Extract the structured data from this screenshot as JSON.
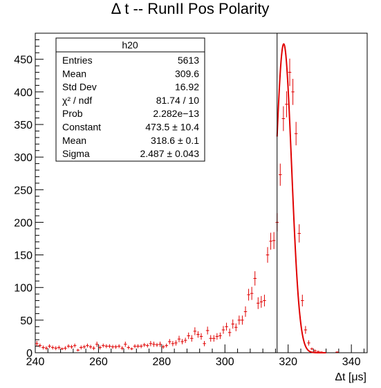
{
  "chart_data": {
    "type": "scatter",
    "title": "Δ t -- RunII Pos Polarity",
    "xlabel": "Δt [μs]",
    "ylabel": "",
    "xlim": [
      240,
      345
    ],
    "ylim": [
      0,
      490
    ],
    "x_ticks": [
      240,
      260,
      280,
      300,
      320,
      340
    ],
    "y_ticks": [
      0,
      50,
      100,
      150,
      200,
      250,
      300,
      350,
      400,
      450
    ],
    "grid": false,
    "histogram": {
      "name": "h20",
      "color": "#e00000",
      "x": [
        240.5,
        241.5,
        242.5,
        243.5,
        244.5,
        245.5,
        246.5,
        247.5,
        248.5,
        249.5,
        250.5,
        251.5,
        252.5,
        253.5,
        254.5,
        255.5,
        256.5,
        257.5,
        258.5,
        259.5,
        260.5,
        261.5,
        262.5,
        263.5,
        264.5,
        265.5,
        266.5,
        267.5,
        268.5,
        269.5,
        270.5,
        271.5,
        272.5,
        273.5,
        274.5,
        275.5,
        276.5,
        277.5,
        278.5,
        279.5,
        280.5,
        281.5,
        282.5,
        283.5,
        284.5,
        285.5,
        286.5,
        287.5,
        288.5,
        289.5,
        290.5,
        291.5,
        292.5,
        293.5,
        294.5,
        295.5,
        296.5,
        297.5,
        298.5,
        299.5,
        300.5,
        301.5,
        302.5,
        303.5,
        304.5,
        305.5,
        306.5,
        307.5,
        308.5,
        309.5,
        310.5,
        311.5,
        312.5,
        313.5,
        314.5,
        315.5,
        316.5,
        317.5,
        318.5,
        319.5,
        320.5,
        321.5,
        322.5,
        323.5,
        324.5,
        325.5,
        326.5,
        327.5,
        328.5,
        329.5,
        330.5,
        335.5
      ],
      "y": [
        14,
        11,
        8,
        7,
        10,
        8,
        7,
        8,
        6,
        7,
        10,
        9,
        11,
        4,
        8,
        9,
        11,
        9,
        7,
        13,
        8,
        11,
        10,
        10,
        9,
        9,
        10,
        7,
        13,
        8,
        6,
        10,
        10,
        10,
        12,
        11,
        14,
        13,
        12,
        13,
        9,
        11,
        17,
        14,
        15,
        21,
        17,
        19,
        26,
        22,
        33,
        28,
        25,
        14,
        34,
        22,
        22,
        25,
        26,
        35,
        40,
        31,
        44,
        39,
        50,
        50,
        63,
        89,
        91,
        114,
        76,
        78,
        80,
        150,
        171,
        172,
        200,
        273,
        359,
        381,
        430,
        400,
        336,
        183,
        80,
        35,
        15,
        6,
        3,
        2,
        1,
        1
      ],
      "err": [
        4,
        3,
        3,
        3,
        3,
        3,
        3,
        3,
        2,
        3,
        3,
        3,
        3,
        2,
        3,
        3,
        3,
        3,
        3,
        4,
        3,
        3,
        3,
        3,
        3,
        3,
        3,
        3,
        4,
        3,
        2,
        3,
        3,
        3,
        3,
        3,
        4,
        4,
        3,
        4,
        3,
        3,
        4,
        4,
        4,
        5,
        4,
        4,
        5,
        5,
        6,
        5,
        5,
        4,
        6,
        5,
        5,
        5,
        5,
        6,
        6,
        6,
        7,
        6,
        7,
        7,
        8,
        9,
        10,
        11,
        9,
        9,
        9,
        12,
        13,
        13,
        14,
        17,
        19,
        20,
        21,
        20,
        18,
        14,
        9,
        6,
        4,
        2,
        2,
        1,
        1,
        1
      ]
    },
    "fit": {
      "name": "Gaussian fit",
      "color": "#e00000",
      "constant": 473.5,
      "mean": 318.6,
      "sigma": 2.487,
      "range": [
        316.5,
        332
      ]
    },
    "vertical_line_x": 316.5,
    "stats_box": {
      "title": "h20",
      "position": "top-left",
      "rows": [
        {
          "label": "Entries",
          "value": "5613"
        },
        {
          "label": "Mean",
          "value": "309.6"
        },
        {
          "label": "Std Dev",
          "value": "16.92"
        },
        {
          "label": "χ² / ndf",
          "value": "81.74 / 10"
        },
        {
          "label": "Prob",
          "value": "2.282e−13"
        },
        {
          "label": "Constant",
          "value": "473.5 ± 10.4"
        },
        {
          "label": "Mean",
          "value": "318.6 ± 0.1"
        },
        {
          "label": "Sigma",
          "value": "2.487 ± 0.043"
        }
      ]
    }
  }
}
